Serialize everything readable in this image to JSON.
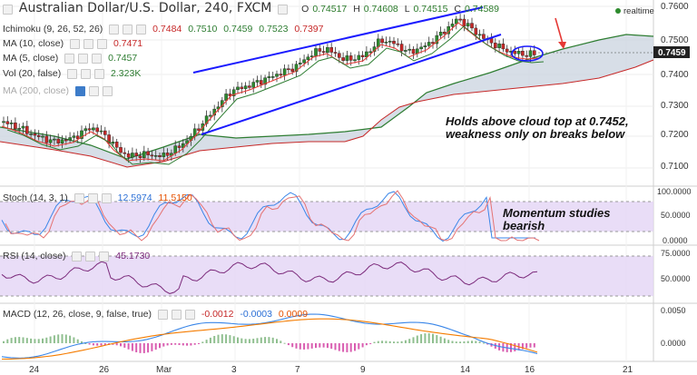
{
  "header": {
    "title": "Australian Dollar/U.S. Dollar, 240, FXCM",
    "ohlc_label": [
      "O",
      "H",
      "L",
      "C"
    ],
    "ohlc_values": [
      "0.74517",
      "0.74608",
      "0.74515",
      "0.74589"
    ],
    "realtime": "realtime"
  },
  "indicators": {
    "ichimoku": {
      "label": "Ichimoku (9, 26, 52, 26)",
      "values": [
        "0.7484",
        "0.7510",
        "0.7459",
        "0.7523",
        "0.7397"
      ]
    },
    "ma10": {
      "label": "MA (10, close)",
      "value": "0.7471"
    },
    "ma5": {
      "label": "MA (5, close)",
      "value": "0.7457"
    },
    "vol": {
      "label": "Vol (20, false)",
      "value": "2.323K"
    },
    "ma200": {
      "label": "MA (200, close)"
    }
  },
  "price_axis": {
    "ticks": [
      "0.7600",
      "0.7500",
      "0.7400",
      "0.7300",
      "0.7200",
      "0.7100"
    ],
    "current": "0.7459"
  },
  "annotations": {
    "cloud_note": [
      "Holds above cloud top at 0.7452,",
      "weakness only on breaks below"
    ],
    "momentum_note": [
      "Momentum studies",
      "bearish"
    ]
  },
  "stoch": {
    "label": "Stoch (14, 3, 1)",
    "values": [
      "12.5974",
      "11.5150"
    ],
    "ticks": [
      "100.0000",
      "50.0000",
      "0.0000"
    ]
  },
  "rsi": {
    "label": "RSI (14, close)",
    "value": "45.1730",
    "ticks": [
      "75.0000",
      "50.0000"
    ]
  },
  "macd": {
    "label": "MACD (12, 26, close, 9, false, true)",
    "values": [
      "-0.0012",
      "-0.0003",
      "0.0009"
    ],
    "ticks": [
      "0.0050",
      "0.0000"
    ]
  },
  "time_axis": {
    "ticks": [
      "24",
      "26",
      "Mar",
      "3",
      "7",
      "9",
      "14",
      "16",
      "21"
    ]
  },
  "colors": {
    "bull": "#2e8b2e",
    "bear": "#c62828",
    "cloud": "#c9d3df",
    "trendline": "#1a1aff",
    "ma_red": "#e53935",
    "ma_green": "#2e7d32",
    "stoch_fill": "#e4d5f5",
    "rsi_line": "#7b2a7b",
    "macd_line": "#3a86e8",
    "signal_line": "#f57c00"
  },
  "chart_data": {
    "type": "candlestick",
    "symbol": "AUDUSD",
    "timeframe": "240",
    "ylim": [
      0.7058,
      0.7618
    ],
    "xlabels": [
      "24",
      "26",
      "Mar",
      "3",
      "7",
      "9",
      "14",
      "16",
      "21"
    ],
    "last_close": 0.7459
  }
}
